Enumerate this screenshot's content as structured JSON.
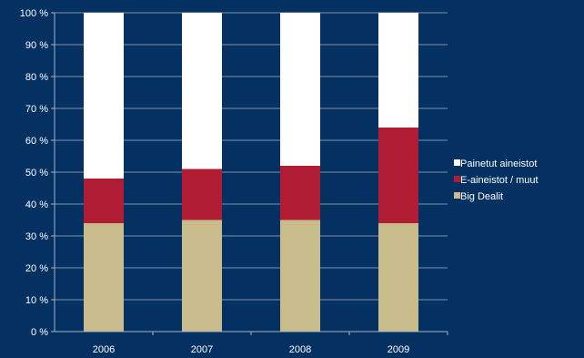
{
  "chart_data": {
    "type": "bar",
    "stacked": true,
    "percent_stacked": true,
    "categories": [
      "2006",
      "2007",
      "2008",
      "2009"
    ],
    "series": [
      {
        "name": "Big Dealit",
        "values": [
          34,
          35,
          35,
          34
        ],
        "color": "#c8bc8c"
      },
      {
        "name": "E-aineistot / muut",
        "values": [
          14,
          16,
          17,
          30
        ],
        "color": "#b01c34"
      },
      {
        "name": "Painetut aineistot",
        "values": [
          52,
          49,
          48,
          36
        ],
        "color": "#ffffff"
      }
    ],
    "legend_order": [
      "Painetut aineistot",
      "E-aineistot / muut",
      "Big Dealit"
    ],
    "ylim": [
      0,
      100
    ],
    "yticks": [
      "0 %",
      "10 %",
      "20 %",
      "30 %",
      "40 %",
      "50 %",
      "60 %",
      "70 %",
      "80 %",
      "90 %",
      "100 %"
    ],
    "grid": true,
    "legend_position": "right",
    "background": "#053062"
  }
}
